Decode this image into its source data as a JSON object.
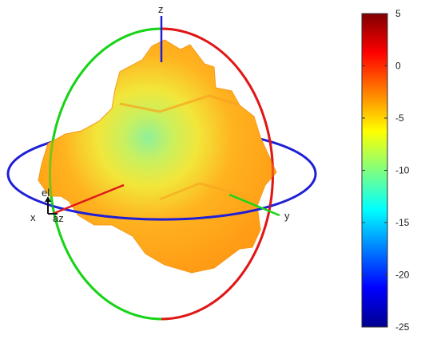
{
  "chart_data": {
    "type": "3d-radiation-pattern",
    "axis_labels": {
      "x": "x",
      "y": "y",
      "z": "z"
    },
    "triad_labels": {
      "el": "el",
      "az": "az"
    },
    "great_circles": [
      {
        "plane": "xy",
        "color": "#1f1fd6"
      },
      {
        "plane": "xz",
        "color": "#e01818"
      },
      {
        "plane": "yz",
        "color": "#18d418"
      }
    ],
    "surface_color_value_range": [
      -10,
      -2
    ],
    "colorbar": {
      "min": -25,
      "max": 5,
      "ticks": [
        5,
        0,
        -5,
        -10,
        -15,
        -20,
        -25
      ],
      "tick_labels": [
        "5",
        "0",
        "-5",
        "-10",
        "-15",
        "-20",
        "-25"
      ],
      "colormap": "jet"
    },
    "grid": false
  }
}
